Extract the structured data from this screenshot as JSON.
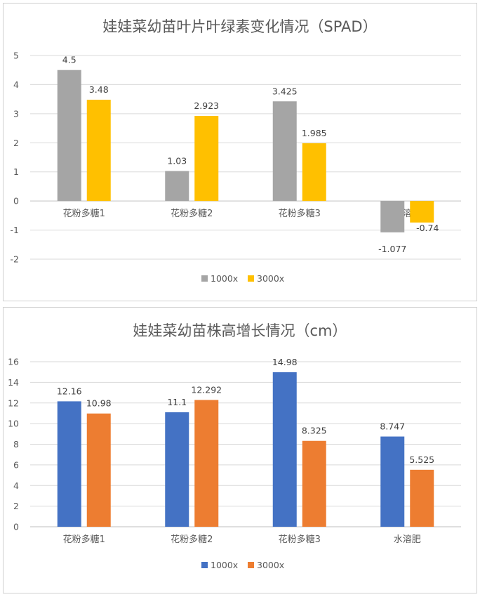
{
  "chart_data": [
    {
      "type": "bar",
      "title": "娃娃菜幼苗叶片叶绿素变化情况（SPAD）",
      "categories": [
        "花粉多糖1",
        "花粉多糖2",
        "花粉多糖3",
        "水溶肥"
      ],
      "series": [
        {
          "name": "1000x",
          "values": [
            4.5,
            1.03,
            3.425,
            -1.077
          ],
          "color": "#a5a5a5"
        },
        {
          "name": "3000x",
          "values": [
            3.48,
            2.923,
            1.985,
            -0.74
          ],
          "color": "#ffc000"
        }
      ],
      "value_labels": [
        [
          "4.5",
          "1.03",
          "3.425",
          "-1.077"
        ],
        [
          "3.48",
          "2.923",
          "1.985",
          "-0.74"
        ]
      ],
      "ylim": [
        -2,
        5
      ],
      "yticks": [
        5,
        4,
        3,
        2,
        1,
        0,
        -1,
        -2
      ],
      "grid": true,
      "legend": "bottom"
    },
    {
      "type": "bar",
      "title": "娃娃菜幼苗株高增长情况（cm）",
      "categories": [
        "花粉多糖1",
        "花粉多糖2",
        "花粉多糖3",
        "水溶肥"
      ],
      "series": [
        {
          "name": "1000x",
          "values": [
            12.16,
            11.1,
            14.98,
            8.747
          ],
          "color": "#4472c4"
        },
        {
          "name": "3000x",
          "values": [
            10.98,
            12.292,
            8.325,
            5.525
          ],
          "color": "#ed7d31"
        }
      ],
      "value_labels": [
        [
          "12.16",
          "11.1",
          "14.98",
          "8.747"
        ],
        [
          "10.98",
          "12.292",
          "8.325",
          "5.525"
        ]
      ],
      "ylim": [
        0,
        16
      ],
      "yticks": [
        16,
        14,
        12,
        10,
        8,
        6,
        4,
        2,
        0
      ],
      "grid": true,
      "legend": "bottom"
    }
  ]
}
